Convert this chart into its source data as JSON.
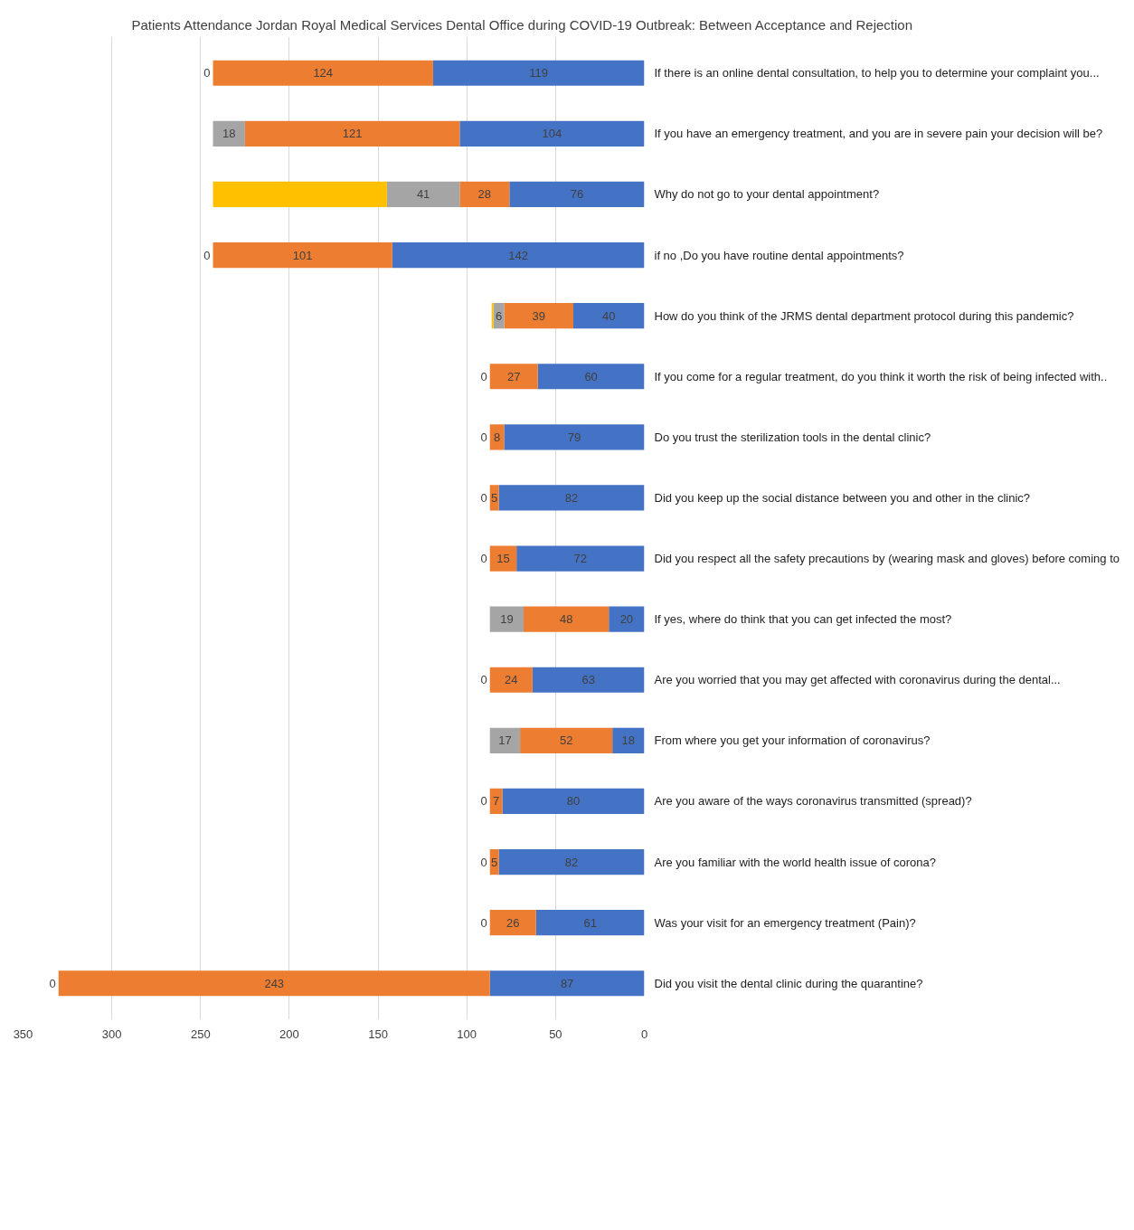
{
  "chart_data": {
    "type": "bar",
    "orientation": "horizontal",
    "stacked": true,
    "title": "Patients Attendance Jordan Royal Medical Services Dental Office during COVID-19 Outbreak: Between Acceptance and Rejection",
    "categories": [
      "If there is an online dental consultation, to help you to determine your complaint you...",
      "If you have an emergency treatment, and you are in severe pain your decision will be?",
      "Why do not go to your dental appointment?",
      "if no ,Do you have routine dental appointments?",
      "How do you think of the JRMS dental department protocol during this pandemic?",
      "If you come for a regular treatment, do you think it worth the risk of being infected with..",
      "Do you trust the sterilization tools in the dental clinic?",
      "Did you keep up the social distance between you and other in the clinic?",
      "Did you respect all the safety precautions by (wearing mask and gloves) before coming to",
      "If yes, where do think that you can get infected the most?",
      "Are you worried that you may get affected with coronavirus during the dental...",
      "From where you get your information of coronavirus?",
      " Are you aware of the ways coronavirus transmitted (spread)?",
      "Are you familiar with the world health issue of corona?",
      "Was your visit for an emergency treatment (Pain)?",
      "Did you visit the dental clinic during the quarantine?"
    ],
    "series": [
      {
        "color": "#4472c4",
        "values": [
          119,
          104,
          76,
          142,
          40,
          60,
          79,
          82,
          72,
          20,
          63,
          18,
          80,
          82,
          61,
          87
        ],
        "value_labels": [
          "119",
          "104",
          "76",
          "142",
          "40",
          "60",
          "79",
          "82",
          "72",
          "20",
          "63",
          "18",
          "80",
          "82",
          "61",
          "87"
        ]
      },
      {
        "color": "#ed7d31",
        "values": [
          124,
          121,
          28,
          101,
          39,
          27,
          8,
          5,
          15,
          48,
          24,
          52,
          7,
          5,
          26,
          243
        ],
        "value_labels": [
          "124",
          "121",
          "28",
          "101",
          "39",
          "27",
          "8",
          "5",
          "15",
          "48",
          "24",
          "52",
          "7",
          "5",
          "26",
          "243"
        ]
      },
      {
        "color": "#a5a5a5",
        "values": [
          0,
          18,
          41,
          0,
          6,
          0,
          0,
          0,
          0,
          19,
          0,
          17,
          0,
          0,
          0,
          0
        ],
        "value_labels": [
          "0",
          "18",
          "41",
          "0",
          "6",
          "0",
          "0",
          "0",
          "0",
          "19",
          "0",
          "17",
          "0",
          "0",
          "0",
          "0"
        ]
      },
      {
        "color": "#ffc000",
        "values": [
          null,
          null,
          98,
          null,
          1,
          null,
          null,
          null,
          null,
          null,
          null,
          null,
          null,
          null,
          null,
          null
        ]
      }
    ],
    "xlim": [
      350,
      0
    ],
    "xticks": [
      0,
      50,
      100,
      150,
      200,
      250,
      300,
      350
    ],
    "grid": "x"
  }
}
